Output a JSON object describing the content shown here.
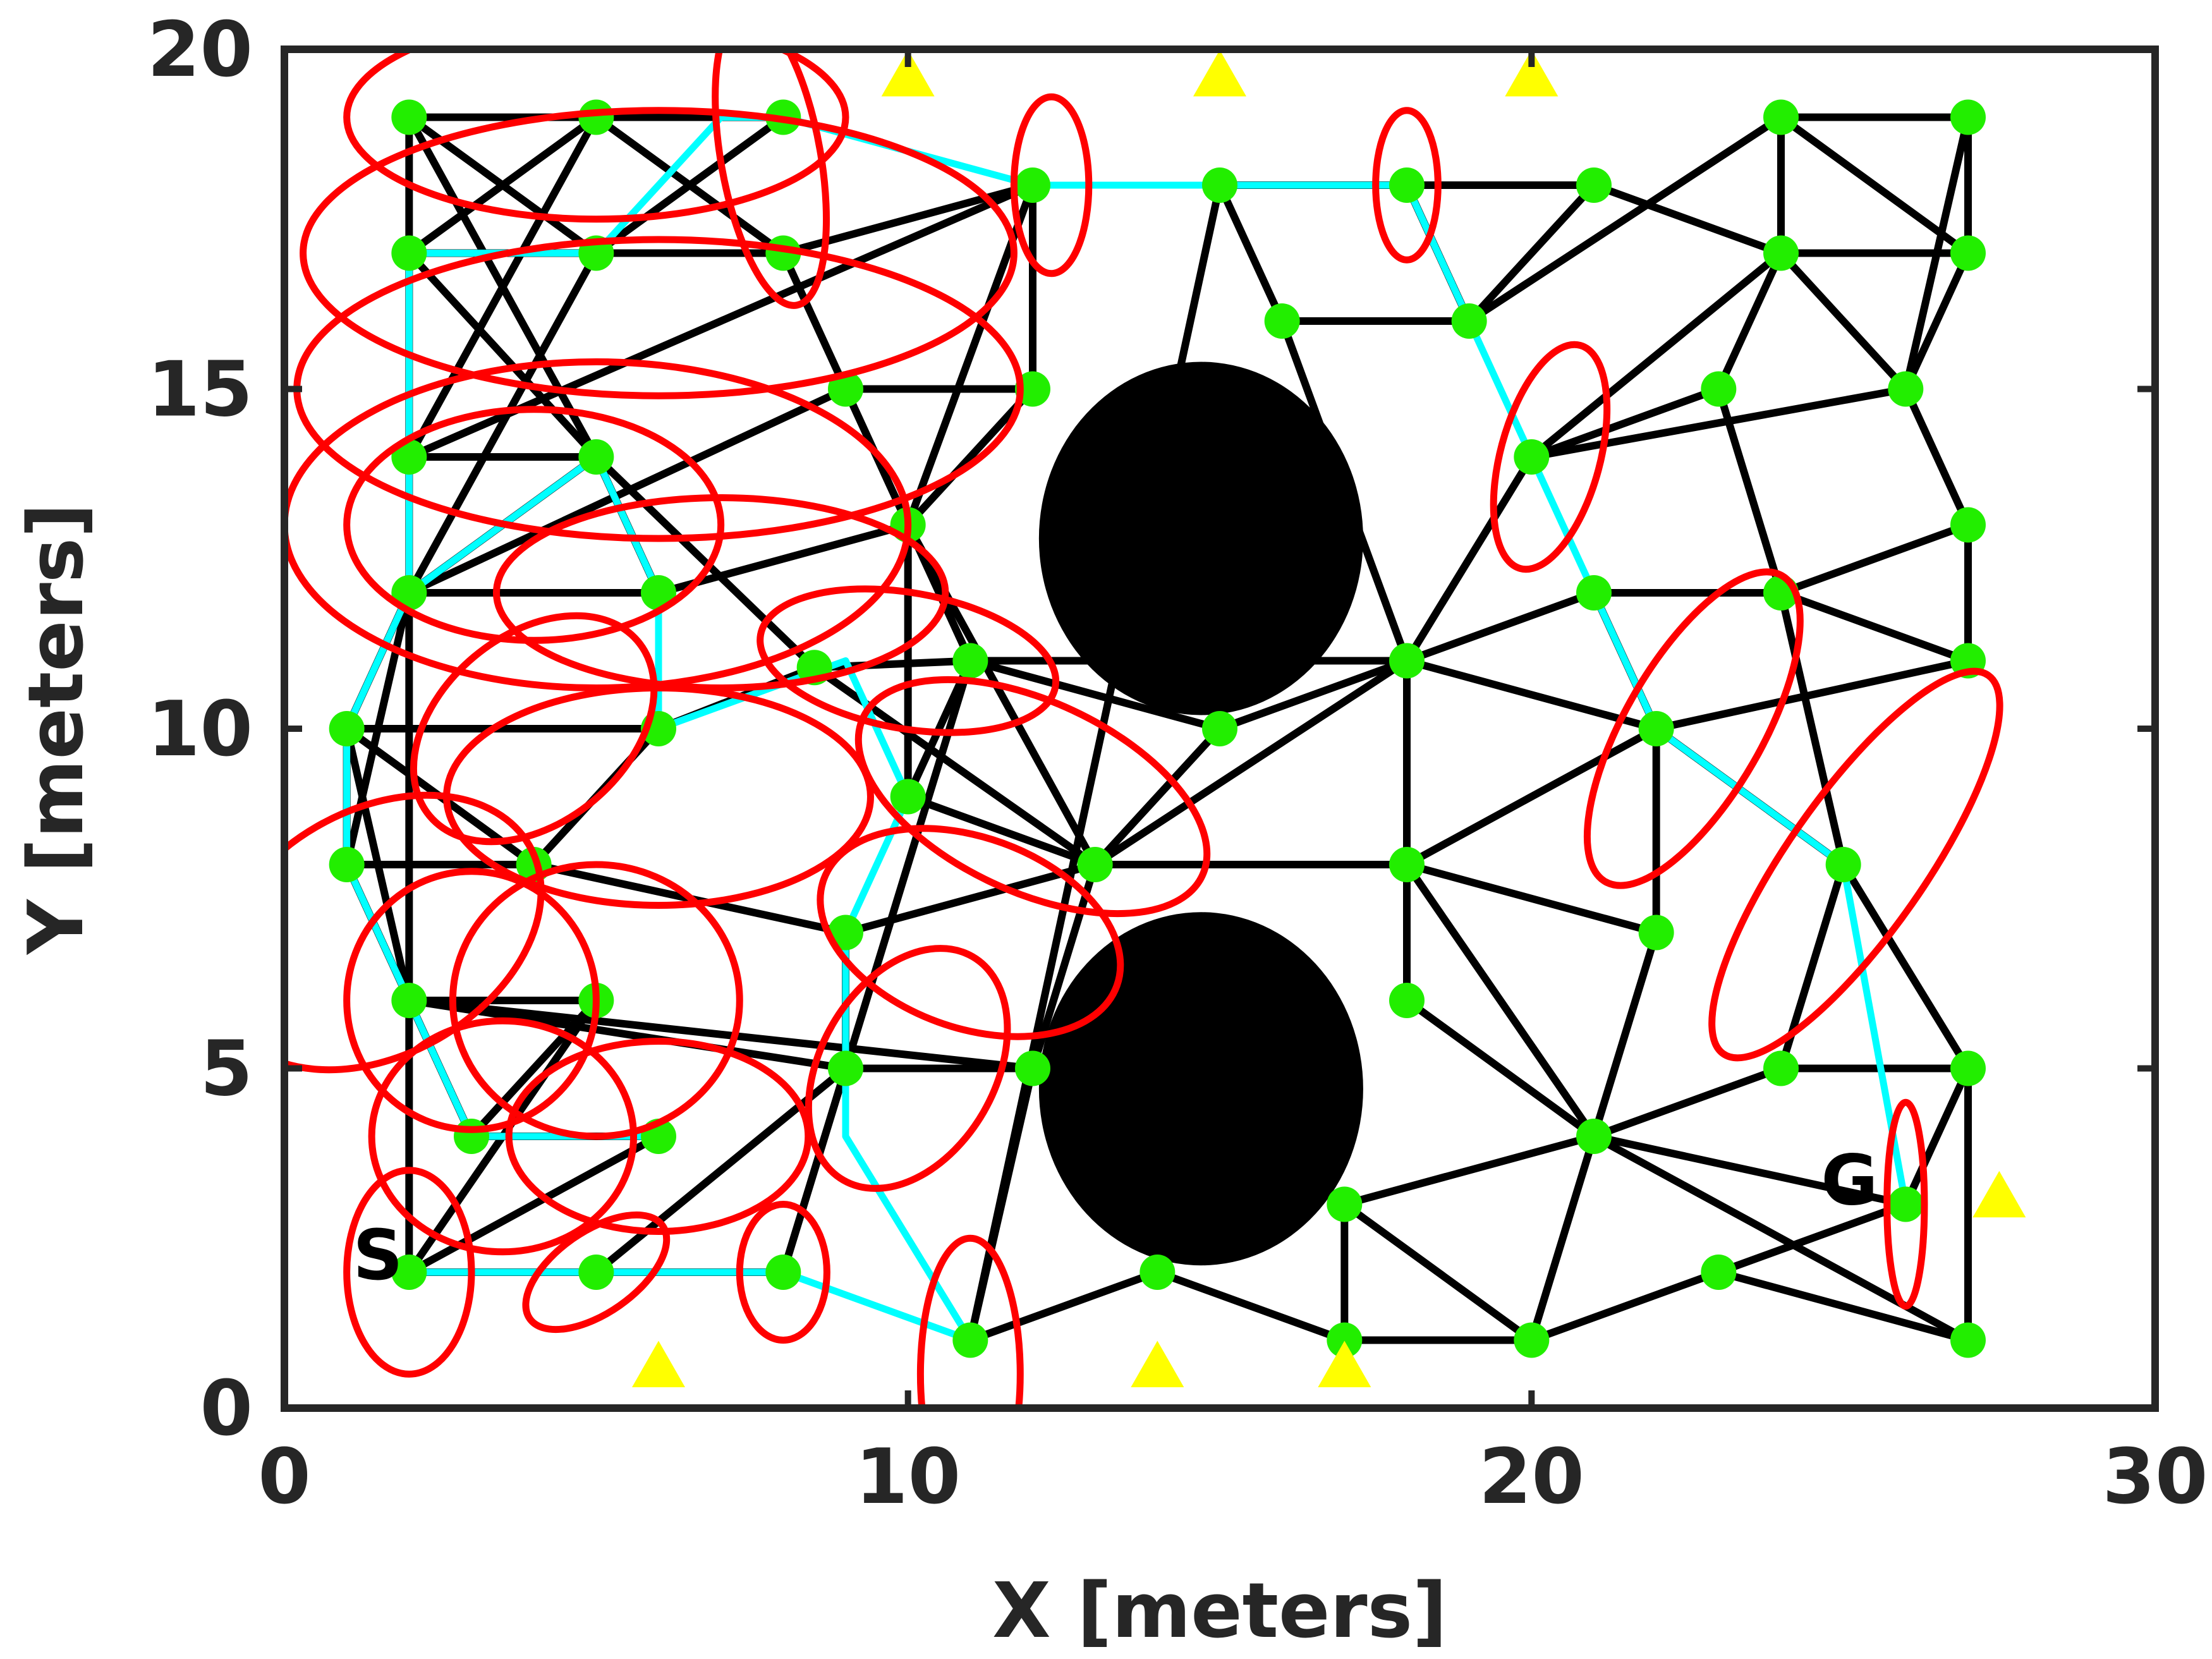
{
  "chart_data": {
    "type": "scatter",
    "title": "",
    "xlabel": "X [meters]",
    "ylabel": "Y [meters]",
    "xlim": [
      0,
      30
    ],
    "ylim": [
      0,
      20
    ],
    "xticks": [
      0,
      10,
      20,
      30
    ],
    "yticks": [
      0,
      5,
      10,
      15,
      20
    ],
    "xtick_labels": [
      "0",
      "10",
      "20",
      "30"
    ],
    "ytick_labels": [
      "0",
      "5",
      "10",
      "15",
      "20"
    ],
    "grid": false,
    "legend": "none",
    "colors": {
      "nodes": "#22ee00",
      "edges": "#000000",
      "path": "#00ffff",
      "ellipses": "#ff0000",
      "landmarks": "#ffff00",
      "obstacles": "#000000",
      "axes": "#262626"
    },
    "obstacles": [
      {
        "cx": 14.7,
        "cy": 12.8,
        "rx": 2.6,
        "ry": 2.6
      },
      {
        "cx": 14.7,
        "cy": 4.7,
        "rx": 2.6,
        "ry": 2.6
      }
    ],
    "nodes": [
      [
        2,
        19
      ],
      [
        5,
        19
      ],
      [
        8,
        19
      ],
      [
        2,
        17
      ],
      [
        5,
        17
      ],
      [
        8,
        17
      ],
      [
        2,
        14
      ],
      [
        5,
        14
      ],
      [
        2,
        12
      ],
      [
        6,
        12
      ],
      [
        9,
        15
      ],
      [
        12,
        18
      ],
      [
        12,
        15
      ],
      [
        15,
        18
      ],
      [
        16,
        16
      ],
      [
        18,
        18
      ],
      [
        19,
        16
      ],
      [
        21,
        18
      ],
      [
        24,
        19
      ],
      [
        27,
        19
      ],
      [
        24,
        17
      ],
      [
        27,
        17
      ],
      [
        23,
        15
      ],
      [
        26,
        15
      ],
      [
        20,
        14
      ],
      [
        21,
        12
      ],
      [
        18,
        11
      ],
      [
        15,
        10
      ],
      [
        13,
        8
      ],
      [
        11,
        11
      ],
      [
        10,
        13
      ],
      [
        10,
        9
      ],
      [
        8.5,
        10.9
      ],
      [
        6,
        10
      ],
      [
        4,
        8
      ],
      [
        1,
        10
      ],
      [
        1,
        8
      ],
      [
        9,
        7
      ],
      [
        9,
        5
      ],
      [
        12,
        5
      ],
      [
        2,
        6
      ],
      [
        5,
        6
      ],
      [
        3,
        4
      ],
      [
        6,
        4
      ],
      [
        2,
        2
      ],
      [
        5,
        2
      ],
      [
        8,
        2
      ],
      [
        11,
        1
      ],
      [
        14,
        2
      ],
      [
        17,
        1
      ],
      [
        17,
        3
      ],
      [
        20,
        1
      ],
      [
        21,
        4
      ],
      [
        18,
        6
      ],
      [
        18,
        8
      ],
      [
        22,
        7
      ],
      [
        22,
        10
      ],
      [
        25,
        8
      ],
      [
        24,
        12
      ],
      [
        27,
        13
      ],
      [
        27,
        11
      ],
      [
        24,
        5
      ],
      [
        27,
        5
      ],
      [
        23,
        2
      ],
      [
        27,
        1
      ],
      [
        26,
        3
      ]
    ],
    "edges": [
      [
        0,
        1
      ],
      [
        1,
        2
      ],
      [
        0,
        3
      ],
      [
        0,
        4
      ],
      [
        1,
        3
      ],
      [
        1,
        5
      ],
      [
        2,
        4
      ],
      [
        3,
        4
      ],
      [
        4,
        5
      ],
      [
        3,
        7
      ],
      [
        0,
        7
      ],
      [
        1,
        6
      ],
      [
        6,
        7
      ],
      [
        7,
        8
      ],
      [
        7,
        32
      ],
      [
        8,
        9
      ],
      [
        8,
        10
      ],
      [
        6,
        11
      ],
      [
        4,
        8
      ],
      [
        7,
        9
      ],
      [
        5,
        10
      ],
      [
        5,
        11
      ],
      [
        10,
        12
      ],
      [
        10,
        29
      ],
      [
        10,
        30
      ],
      [
        11,
        12
      ],
      [
        11,
        30
      ],
      [
        12,
        30
      ],
      [
        13,
        14
      ],
      [
        13,
        15
      ],
      [
        14,
        16
      ],
      [
        14,
        26
      ],
      [
        15,
        16
      ],
      [
        15,
        17
      ],
      [
        16,
        18
      ],
      [
        16,
        17
      ],
      [
        17,
        20
      ],
      [
        18,
        19
      ],
      [
        18,
        20
      ],
      [
        18,
        21
      ],
      [
        19,
        21
      ],
      [
        20,
        21
      ],
      [
        20,
        22
      ],
      [
        21,
        23
      ],
      [
        19,
        23
      ],
      [
        20,
        23
      ],
      [
        22,
        24
      ],
      [
        23,
        24
      ],
      [
        23,
        59
      ],
      [
        22,
        58
      ],
      [
        20,
        24
      ],
      [
        24,
        26
      ],
      [
        25,
        26
      ],
      [
        25,
        58
      ],
      [
        26,
        29
      ],
      [
        26,
        27
      ],
      [
        27,
        28
      ],
      [
        27,
        29
      ],
      [
        9,
        30
      ],
      [
        30,
        29
      ],
      [
        30,
        31
      ],
      [
        30,
        28
      ],
      [
        31,
        29
      ],
      [
        31,
        28
      ],
      [
        32,
        29
      ],
      [
        32,
        28
      ],
      [
        33,
        32
      ],
      [
        33,
        34
      ],
      [
        33,
        35
      ],
      [
        35,
        34
      ],
      [
        35,
        36
      ],
      [
        35,
        8
      ],
      [
        36,
        34
      ],
      [
        36,
        40
      ],
      [
        34,
        37
      ],
      [
        37,
        28
      ],
      [
        38,
        37
      ],
      [
        38,
        39
      ],
      [
        38,
        40
      ],
      [
        39,
        28
      ],
      [
        39,
        40
      ],
      [
        40,
        41
      ],
      [
        40,
        42
      ],
      [
        41,
        42
      ],
      [
        42,
        43
      ],
      [
        43,
        44
      ],
      [
        44,
        45
      ],
      [
        45,
        38
      ],
      [
        46,
        38
      ],
      [
        46,
        29
      ],
      [
        47,
        13
      ],
      [
        47,
        48
      ],
      [
        48,
        49
      ],
      [
        49,
        50
      ],
      [
        49,
        51
      ],
      [
        50,
        51
      ],
      [
        50,
        52
      ],
      [
        51,
        52
      ],
      [
        52,
        53
      ],
      [
        52,
        54
      ],
      [
        53,
        54
      ],
      [
        54,
        55
      ],
      [
        54,
        56
      ],
      [
        54,
        26
      ],
      [
        55,
        56
      ],
      [
        55,
        52
      ],
      [
        56,
        57
      ],
      [
        56,
        25
      ],
      [
        57,
        58
      ],
      [
        57,
        61
      ],
      [
        58,
        59
      ],
      [
        58,
        60
      ],
      [
        59,
        60
      ],
      [
        60,
        56
      ],
      [
        61,
        62
      ],
      [
        61,
        52
      ],
      [
        62,
        64
      ],
      [
        62,
        65
      ],
      [
        63,
        64
      ],
      [
        63,
        65
      ],
      [
        63,
        51
      ],
      [
        64,
        52
      ],
      [
        65,
        52
      ],
      [
        56,
        26
      ],
      [
        57,
        62
      ],
      [
        8,
        36
      ],
      [
        35,
        40
      ],
      [
        3,
        44
      ],
      [
        44,
        46
      ],
      [
        47,
        39
      ],
      [
        41,
        44
      ],
      [
        26,
        28
      ],
      [
        27,
        28
      ],
      [
        28,
        54
      ]
    ],
    "path": [
      [
        2,
        2
      ],
      [
        5,
        2
      ],
      [
        8,
        2
      ],
      [
        11,
        1
      ],
      [
        9,
        4
      ],
      [
        9,
        7
      ],
      [
        10,
        9
      ],
      [
        9,
        11
      ],
      [
        6,
        10
      ],
      [
        6,
        12
      ],
      [
        5,
        14
      ],
      [
        2,
        12
      ],
      [
        1,
        10
      ],
      [
        1,
        8
      ],
      [
        2,
        6
      ],
      [
        3,
        4
      ],
      [
        6,
        4
      ],
      [
        6,
        4
      ],
      [
        2,
        17
      ],
      [
        5,
        17
      ],
      [
        7,
        19
      ],
      [
        8,
        19
      ],
      [
        12,
        18
      ],
      [
        15,
        18
      ],
      [
        18,
        18
      ],
      [
        19,
        16
      ],
      [
        20,
        14
      ],
      [
        21,
        12
      ],
      [
        22,
        10
      ],
      [
        25,
        8
      ],
      [
        26,
        3
      ]
    ],
    "path_segments": [
      [
        [
          2,
          2
        ],
        [
          5,
          2
        ],
        [
          8,
          2
        ],
        [
          11,
          1
        ]
      ],
      [
        [
          11,
          1
        ],
        [
          9,
          4
        ],
        [
          9,
          7
        ],
        [
          10,
          9
        ],
        [
          9,
          11
        ],
        [
          6,
          10
        ],
        [
          6,
          12
        ],
        [
          5,
          14
        ],
        [
          2,
          12
        ],
        [
          1,
          10
        ],
        [
          1,
          8
        ],
        [
          2,
          6
        ],
        [
          3,
          4
        ],
        [
          6,
          4
        ]
      ],
      [
        [
          2,
          12
        ],
        [
          2,
          17
        ],
        [
          5,
          17
        ],
        [
          7,
          19
        ],
        [
          8,
          19
        ],
        [
          12,
          18
        ],
        [
          15,
          18
        ],
        [
          18,
          18
        ],
        [
          19,
          16
        ],
        [
          20,
          14
        ],
        [
          21,
          12
        ],
        [
          22,
          10
        ],
        [
          25,
          8
        ],
        [
          26,
          3
        ]
      ]
    ],
    "ellipses": [
      [
        2,
        2,
        1.0,
        1.5,
        0
      ],
      [
        5,
        2,
        1.3,
        0.6,
        35
      ],
      [
        8,
        2,
        0.7,
        1.0,
        0
      ],
      [
        11,
        0.5,
        0.8,
        2.0,
        0
      ],
      [
        3.5,
        4,
        2.1,
        1.7,
        0
      ],
      [
        6,
        4,
        2.4,
        1.4,
        0
      ],
      [
        3,
        6,
        2.0,
        1.9,
        0
      ],
      [
        5,
        6,
        2.3,
        2.0,
        0
      ],
      [
        1.5,
        7,
        2.8,
        1.8,
        30
      ],
      [
        10,
        5,
        1.4,
        1.9,
        -30
      ],
      [
        11,
        7,
        2.5,
        1.4,
        -20
      ],
      [
        12,
        9,
        3.0,
        1.4,
        -25
      ],
      [
        6,
        9,
        3.4,
        1.6,
        0
      ],
      [
        4,
        10,
        1.5,
        2.0,
        -50
      ],
      [
        10,
        11,
        2.4,
        1.0,
        -10
      ],
      [
        7,
        12,
        3.6,
        1.4,
        0
      ],
      [
        4,
        13,
        3.0,
        1.7,
        0
      ],
      [
        5,
        13,
        5.0,
        2.4,
        0
      ],
      [
        6,
        15,
        5.8,
        2.2,
        0
      ],
      [
        6,
        17,
        5.7,
        2.1,
        0
      ],
      [
        5,
        19,
        4.0,
        1.5,
        0
      ],
      [
        7.8,
        18.4,
        0.8,
        2.2,
        10
      ],
      [
        12.3,
        18,
        0.6,
        1.3,
        0
      ],
      [
        18,
        18,
        0.5,
        1.1,
        0
      ],
      [
        20.3,
        14,
        0.8,
        1.7,
        -15
      ],
      [
        22.6,
        10,
        1.1,
        2.6,
        -30
      ],
      [
        25.2,
        8,
        1.1,
        3.4,
        -35
      ],
      [
        26,
        3,
        0.3,
        1.5,
        0
      ]
    ],
    "landmarks": [
      [
        10,
        19.6
      ],
      [
        15,
        19.6
      ],
      [
        20,
        19.6
      ],
      [
        6,
        0.6
      ],
      [
        14,
        0.6
      ],
      [
        17,
        0.6
      ],
      [
        27.5,
        3.1
      ]
    ],
    "markers": [
      {
        "label": "S",
        "x": 1.5,
        "y": 1.9
      },
      {
        "label": "G",
        "x": 25.1,
        "y": 3.0
      }
    ]
  }
}
